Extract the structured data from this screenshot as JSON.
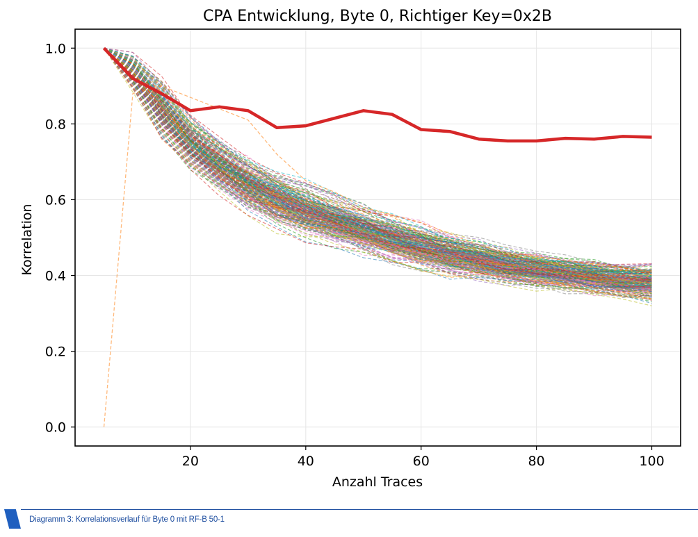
{
  "chart_data": {
    "type": "line",
    "title": "CPA Entwicklung, Byte 0, Richtiger Key=0x2B",
    "xlabel": "Anzahl Traces",
    "ylabel": "Korrelation",
    "xlim": [
      0,
      105
    ],
    "ylim": [
      -0.05,
      1.05
    ],
    "xticks": [
      20,
      40,
      60,
      80,
      100
    ],
    "yticks": [
      0.0,
      0.2,
      0.4,
      0.6,
      0.8,
      1.0
    ],
    "xtick_labels": [
      "20",
      "40",
      "60",
      "80",
      "100"
    ],
    "ytick_labels": [
      "0.0",
      "0.2",
      "0.4",
      "0.6",
      "0.8",
      "1.0"
    ],
    "grid": true,
    "x": [
      5,
      10,
      15,
      20,
      25,
      30,
      35,
      40,
      45,
      50,
      55,
      60,
      65,
      70,
      75,
      80,
      85,
      90,
      95,
      100
    ],
    "correct_key_series": {
      "color": "#d62728",
      "values": [
        1.0,
        0.92,
        0.88,
        0.835,
        0.845,
        0.835,
        0.79,
        0.795,
        0.815,
        0.835,
        0.825,
        0.785,
        0.78,
        0.76,
        0.755,
        0.755,
        0.762,
        0.76,
        0.767,
        0.765
      ]
    },
    "wrong_keys_band": {
      "count": 255,
      "style": "dashed",
      "mean": [
        1.0,
        0.94,
        0.84,
        0.75,
        0.69,
        0.64,
        0.6,
        0.57,
        0.545,
        0.52,
        0.495,
        0.475,
        0.455,
        0.44,
        0.425,
        0.415,
        0.405,
        0.395,
        0.385,
        0.38
      ],
      "spread": [
        0.0,
        0.03,
        0.05,
        0.045,
        0.045,
        0.045,
        0.045,
        0.045,
        0.042,
        0.04,
        0.04,
        0.038,
        0.036,
        0.034,
        0.032,
        0.03,
        0.03,
        0.03,
        0.03,
        0.032
      ]
    },
    "outlier_series": {
      "color": "#ff7f0e",
      "values": [
        0.0,
        0.88,
        0.9,
        0.87,
        0.84,
        0.81,
        0.72,
        0.65,
        0.62,
        0.58,
        0.56,
        0.54,
        0.51,
        0.48,
        0.46,
        0.45,
        0.44,
        0.43,
        0.42,
        0.41
      ]
    },
    "palette": [
      "#1f77b4",
      "#ff7f0e",
      "#2ca02c",
      "#d62728",
      "#9467bd",
      "#8c564b",
      "#e377c2",
      "#7f7f7f",
      "#bcbd22",
      "#17becf"
    ]
  },
  "caption": {
    "text": "Diagramm 3: Korrelationsverlauf für Byte 0 mit RF-B 50-1",
    "color": "#1f4fa0"
  }
}
